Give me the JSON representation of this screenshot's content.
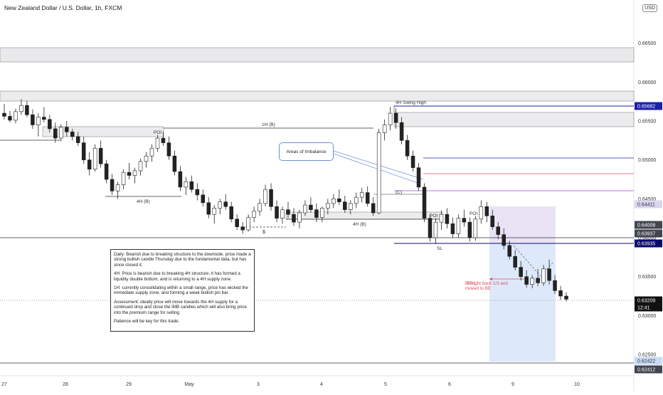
{
  "header": {
    "title": "New Zealand Dollar / U.S. Dollar, 1h, FXCM",
    "currency": "USD"
  },
  "chart_data": {
    "type": "candlestick",
    "title": "New Zealand Dollar / U.S. Dollar, 1h, FXCM",
    "ylim": [
      0.6192,
      0.67
    ],
    "y_ticks": [
      "0.62500",
      "0.63000",
      "0.63500",
      "0.64000",
      "0.64500",
      "0.65000",
      "0.65500",
      "0.66000",
      "0.66500"
    ],
    "x_ticks": [
      "27",
      "28",
      "29",
      "May",
      "3",
      "4",
      "5",
      "6",
      "9",
      "10"
    ],
    "price_badges": [
      {
        "value": "0.65682",
        "color": "#1c1fa8"
      },
      {
        "value": "0.64411",
        "color": "#d9d6f0"
      },
      {
        "value": "0.64008",
        "color": "#434651"
      },
      {
        "value": "0.63937",
        "color": "#434651"
      },
      {
        "value": "0.63935",
        "color": "#0b0b6b"
      },
      {
        "value": "0.63209",
        "color": "#111111"
      },
      {
        "value": "12:41",
        "color": "#111111"
      },
      {
        "value": "0.62422",
        "color": "#c9dbf7"
      },
      {
        "value": "0.62412",
        "color": "#434651"
      }
    ],
    "annotations": {
      "swing_high": "4H Swing High",
      "one_h_b": "1H (B)",
      "four_h_b_left": "4H (B)",
      "four_h_b_mid": "4H (B)",
      "poi_1": "POI",
      "poi_2": "POI",
      "poi_3": "POI",
      "dollar": "$",
      "c_label": "(C)",
      "sl": "SL",
      "callout": "Areas of Imbalance",
      "tp1": "TP1",
      "tp_note_1": "Brought back 1/3 and",
      "tp_note_2": "moved to BE"
    },
    "analysis": {
      "daily": "Daily: Bearish due to breaking structure to the downside. price made a strong bullish candle Thursday due to the fundamental data, but has since closed it.",
      "four_h": "4H: Price is bearish due to breaking 4H structure, it has formed a liquidity double bottom, and is returning to a 4H supply zone.",
      "one_h": "1H: currently consolidating within a small range, price has wicked the immediate supply zone, and forming a weak bullish pin bar.",
      "assessment": "Assessment: ideally price will move towards the 4H supply for a continued drop and close the IMB candles which will also bring price into the premium range for selling.",
      "patience": "Patience will be key for this trade."
    },
    "candles": [
      {
        "o": 0.656,
        "h": 0.6572,
        "l": 0.6552,
        "c": 0.6556
      },
      {
        "o": 0.6556,
        "h": 0.6563,
        "l": 0.6548,
        "c": 0.6551
      },
      {
        "o": 0.6551,
        "h": 0.6566,
        "l": 0.6547,
        "c": 0.6562
      },
      {
        "o": 0.6562,
        "h": 0.6578,
        "l": 0.6558,
        "c": 0.657
      },
      {
        "o": 0.657,
        "h": 0.6576,
        "l": 0.6555,
        "c": 0.6558
      },
      {
        "o": 0.6558,
        "h": 0.6565,
        "l": 0.654,
        "c": 0.6545
      },
      {
        "o": 0.6545,
        "h": 0.656,
        "l": 0.653,
        "c": 0.6555
      },
      {
        "o": 0.6555,
        "h": 0.6568,
        "l": 0.6548,
        "c": 0.6552
      },
      {
        "o": 0.6552,
        "h": 0.6558,
        "l": 0.6535,
        "c": 0.654
      },
      {
        "o": 0.654,
        "h": 0.6548,
        "l": 0.6522,
        "c": 0.6528
      },
      {
        "o": 0.6528,
        "h": 0.6546,
        "l": 0.6524,
        "c": 0.6542
      },
      {
        "o": 0.6542,
        "h": 0.655,
        "l": 0.653,
        "c": 0.6536
      },
      {
        "o": 0.6536,
        "h": 0.654,
        "l": 0.6525,
        "c": 0.653
      },
      {
        "o": 0.653,
        "h": 0.6536,
        "l": 0.6518,
        "c": 0.6522
      },
      {
        "o": 0.6522,
        "h": 0.653,
        "l": 0.6495,
        "c": 0.65
      },
      {
        "o": 0.65,
        "h": 0.651,
        "l": 0.648,
        "c": 0.6488
      },
      {
        "o": 0.6488,
        "h": 0.652,
        "l": 0.6485,
        "c": 0.6515
      },
      {
        "o": 0.6515,
        "h": 0.6525,
        "l": 0.649,
        "c": 0.6495
      },
      {
        "o": 0.6495,
        "h": 0.65,
        "l": 0.647,
        "c": 0.6475
      },
      {
        "o": 0.6475,
        "h": 0.6482,
        "l": 0.6455,
        "c": 0.646
      },
      {
        "o": 0.646,
        "h": 0.6472,
        "l": 0.645,
        "c": 0.6468
      },
      {
        "o": 0.6468,
        "h": 0.6488,
        "l": 0.6462,
        "c": 0.6484
      },
      {
        "o": 0.6484,
        "h": 0.6496,
        "l": 0.6475,
        "c": 0.648
      },
      {
        "o": 0.648,
        "h": 0.649,
        "l": 0.647,
        "c": 0.6486
      },
      {
        "o": 0.6486,
        "h": 0.6502,
        "l": 0.648,
        "c": 0.6498
      },
      {
        "o": 0.6498,
        "h": 0.651,
        "l": 0.649,
        "c": 0.6505
      },
      {
        "o": 0.6505,
        "h": 0.652,
        "l": 0.6498,
        "c": 0.6515
      },
      {
        "o": 0.6515,
        "h": 0.6532,
        "l": 0.651,
        "c": 0.6528
      },
      {
        "o": 0.6528,
        "h": 0.6536,
        "l": 0.6518,
        "c": 0.6522
      },
      {
        "o": 0.6522,
        "h": 0.653,
        "l": 0.65,
        "c": 0.6505
      },
      {
        "o": 0.6505,
        "h": 0.6512,
        "l": 0.648,
        "c": 0.6485
      },
      {
        "o": 0.6485,
        "h": 0.6492,
        "l": 0.646,
        "c": 0.6465
      },
      {
        "o": 0.6465,
        "h": 0.6478,
        "l": 0.6455,
        "c": 0.6472
      },
      {
        "o": 0.6472,
        "h": 0.648,
        "l": 0.6458,
        "c": 0.6462
      },
      {
        "o": 0.6462,
        "h": 0.647,
        "l": 0.6448,
        "c": 0.6455
      },
      {
        "o": 0.6455,
        "h": 0.6462,
        "l": 0.644,
        "c": 0.6445
      },
      {
        "o": 0.6445,
        "h": 0.6452,
        "l": 0.6425,
        "c": 0.643
      },
      {
        "o": 0.643,
        "h": 0.6442,
        "l": 0.6418,
        "c": 0.6438
      },
      {
        "o": 0.6438,
        "h": 0.645,
        "l": 0.643,
        "c": 0.6446
      },
      {
        "o": 0.6446,
        "h": 0.6456,
        "l": 0.6436,
        "c": 0.644
      },
      {
        "o": 0.644,
        "h": 0.6446,
        "l": 0.642,
        "c": 0.6424
      },
      {
        "o": 0.6424,
        "h": 0.643,
        "l": 0.641,
        "c": 0.6414
      },
      {
        "o": 0.6414,
        "h": 0.642,
        "l": 0.6405,
        "c": 0.641
      },
      {
        "o": 0.641,
        "h": 0.643,
        "l": 0.6408,
        "c": 0.6426
      },
      {
        "o": 0.6426,
        "h": 0.644,
        "l": 0.642,
        "c": 0.6434
      },
      {
        "o": 0.6434,
        "h": 0.645,
        "l": 0.6428,
        "c": 0.6444
      },
      {
        "o": 0.6444,
        "h": 0.6468,
        "l": 0.644,
        "c": 0.6462
      },
      {
        "o": 0.6462,
        "h": 0.647,
        "l": 0.6435,
        "c": 0.644
      },
      {
        "o": 0.644,
        "h": 0.6448,
        "l": 0.642,
        "c": 0.6425
      },
      {
        "o": 0.6425,
        "h": 0.644,
        "l": 0.6418,
        "c": 0.6436
      },
      {
        "o": 0.6436,
        "h": 0.6446,
        "l": 0.6425,
        "c": 0.643
      },
      {
        "o": 0.643,
        "h": 0.6438,
        "l": 0.6415,
        "c": 0.642
      },
      {
        "o": 0.642,
        "h": 0.6436,
        "l": 0.6412,
        "c": 0.6432
      },
      {
        "o": 0.6432,
        "h": 0.6448,
        "l": 0.6428,
        "c": 0.6442
      },
      {
        "o": 0.6442,
        "h": 0.6452,
        "l": 0.6432,
        "c": 0.6436
      },
      {
        "o": 0.6436,
        "h": 0.6444,
        "l": 0.642,
        "c": 0.6426
      },
      {
        "o": 0.6426,
        "h": 0.644,
        "l": 0.642,
        "c": 0.6438
      },
      {
        "o": 0.6438,
        "h": 0.645,
        "l": 0.643,
        "c": 0.6444
      },
      {
        "o": 0.6444,
        "h": 0.6456,
        "l": 0.6438,
        "c": 0.645
      },
      {
        "o": 0.645,
        "h": 0.6462,
        "l": 0.6442,
        "c": 0.6446
      },
      {
        "o": 0.6446,
        "h": 0.6454,
        "l": 0.6432,
        "c": 0.6436
      },
      {
        "o": 0.6436,
        "h": 0.6448,
        "l": 0.643,
        "c": 0.6444
      },
      {
        "o": 0.6444,
        "h": 0.6458,
        "l": 0.6438,
        "c": 0.6452
      },
      {
        "o": 0.6452,
        "h": 0.6464,
        "l": 0.6445,
        "c": 0.6458
      },
      {
        "o": 0.6458,
        "h": 0.6466,
        "l": 0.644,
        "c": 0.6444
      },
      {
        "o": 0.6444,
        "h": 0.6452,
        "l": 0.6428,
        "c": 0.6432
      },
      {
        "o": 0.6432,
        "h": 0.654,
        "l": 0.643,
        "c": 0.6535
      },
      {
        "o": 0.6535,
        "h": 0.6552,
        "l": 0.6525,
        "c": 0.6545
      },
      {
        "o": 0.6545,
        "h": 0.6568,
        "l": 0.6538,
        "c": 0.656
      },
      {
        "o": 0.656,
        "h": 0.6566,
        "l": 0.654,
        "c": 0.6548
      },
      {
        "o": 0.6548,
        "h": 0.6555,
        "l": 0.652,
        "c": 0.6525
      },
      {
        "o": 0.6525,
        "h": 0.6532,
        "l": 0.65,
        "c": 0.6505
      },
      {
        "o": 0.6505,
        "h": 0.6512,
        "l": 0.6485,
        "c": 0.649
      },
      {
        "o": 0.649,
        "h": 0.6496,
        "l": 0.646,
        "c": 0.6465
      },
      {
        "o": 0.6465,
        "h": 0.647,
        "l": 0.642,
        "c": 0.6425
      },
      {
        "o": 0.6425,
        "h": 0.643,
        "l": 0.6395,
        "c": 0.64
      },
      {
        "o": 0.64,
        "h": 0.6425,
        "l": 0.6392,
        "c": 0.642
      },
      {
        "o": 0.642,
        "h": 0.6435,
        "l": 0.641,
        "c": 0.643
      },
      {
        "o": 0.643,
        "h": 0.6438,
        "l": 0.6412,
        "c": 0.6418
      },
      {
        "o": 0.6418,
        "h": 0.6426,
        "l": 0.64,
        "c": 0.6405
      },
      {
        "o": 0.6405,
        "h": 0.643,
        "l": 0.64,
        "c": 0.6425
      },
      {
        "o": 0.6425,
        "h": 0.6436,
        "l": 0.6414,
        "c": 0.642
      },
      {
        "o": 0.642,
        "h": 0.6426,
        "l": 0.6395,
        "c": 0.64
      },
      {
        "o": 0.64,
        "h": 0.6428,
        "l": 0.6396,
        "c": 0.6424
      },
      {
        "o": 0.6424,
        "h": 0.6448,
        "l": 0.6418,
        "c": 0.644
      },
      {
        "o": 0.644,
        "h": 0.6446,
        "l": 0.642,
        "c": 0.6428
      },
      {
        "o": 0.6428,
        "h": 0.6436,
        "l": 0.641,
        "c": 0.6414
      },
      {
        "o": 0.6414,
        "h": 0.642,
        "l": 0.6398,
        "c": 0.6404
      },
      {
        "o": 0.6404,
        "h": 0.6412,
        "l": 0.6385,
        "c": 0.639
      },
      {
        "o": 0.639,
        "h": 0.6396,
        "l": 0.6372,
        "c": 0.6376
      },
      {
        "o": 0.6376,
        "h": 0.6384,
        "l": 0.6358,
        "c": 0.6362
      },
      {
        "o": 0.6362,
        "h": 0.637,
        "l": 0.6345,
        "c": 0.635
      },
      {
        "o": 0.635,
        "h": 0.6358,
        "l": 0.6336,
        "c": 0.634
      },
      {
        "o": 0.634,
        "h": 0.6352,
        "l": 0.6335,
        "c": 0.6348
      },
      {
        "o": 0.6348,
        "h": 0.636,
        "l": 0.6338,
        "c": 0.6342
      },
      {
        "o": 0.6342,
        "h": 0.6365,
        "l": 0.6338,
        "c": 0.636
      },
      {
        "o": 0.636,
        "h": 0.6372,
        "l": 0.634,
        "c": 0.6345
      },
      {
        "o": 0.6345,
        "h": 0.6352,
        "l": 0.6328,
        "c": 0.6332
      },
      {
        "o": 0.6332,
        "h": 0.6338,
        "l": 0.632,
        "c": 0.6325
      },
      {
        "o": 0.6325,
        "h": 0.633,
        "l": 0.6318,
        "c": 0.6321
      }
    ]
  }
}
